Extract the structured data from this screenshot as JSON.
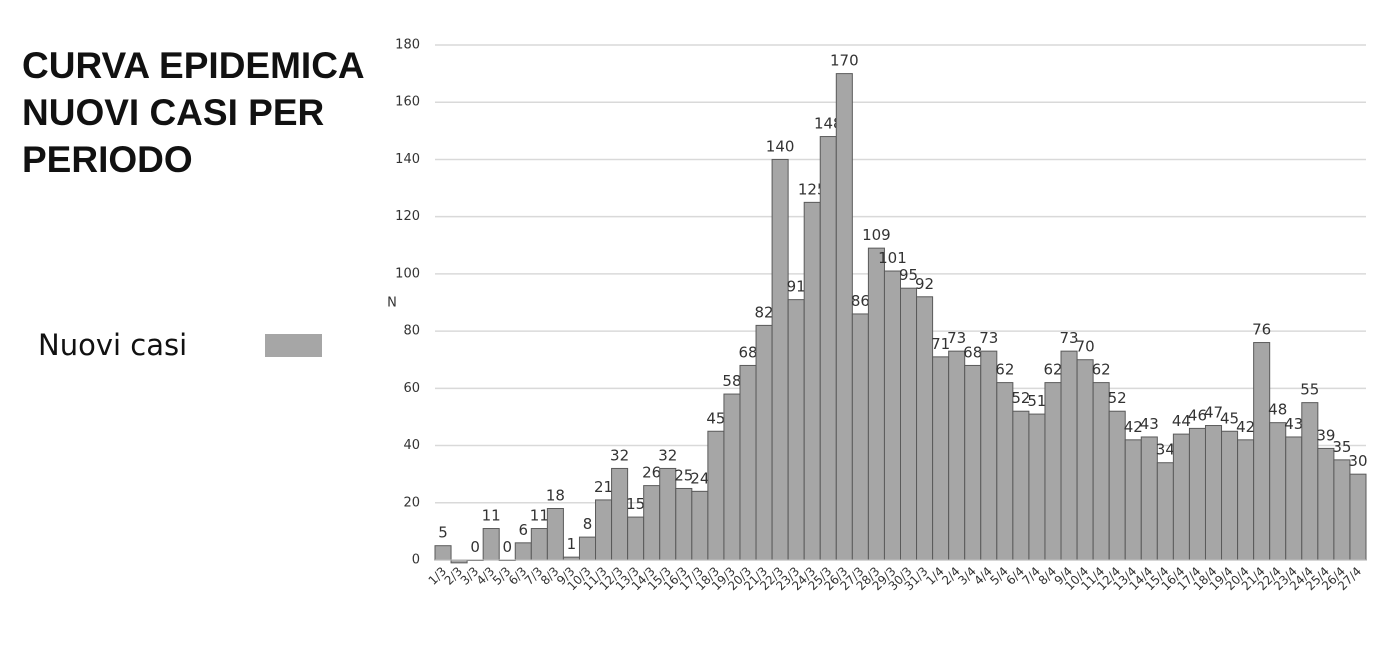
{
  "chart_data": {
    "type": "bar",
    "title": [
      "CURVA EPIDEMICA",
      "NUOVI CASI PER",
      "PERIODO"
    ],
    "y_label": "N",
    "series": [
      {
        "name": "Nuovi casi",
        "color": "#a6a6a6",
        "values": [
          5,
          -1,
          0,
          11,
          0,
          6,
          11,
          18,
          1,
          8,
          21,
          32,
          15,
          26,
          32,
          25,
          24,
          45,
          58,
          68,
          82,
          140,
          91,
          125,
          148,
          170,
          86,
          109,
          101,
          95,
          92,
          71,
          73,
          68,
          73,
          62,
          52,
          51,
          62,
          73,
          70,
          62,
          52,
          42,
          43,
          34,
          44,
          46,
          47,
          45,
          42,
          76,
          48,
          43,
          55,
          39,
          35,
          30
        ],
        "value_labels": [
          "5",
          null,
          "0",
          "11",
          "0",
          "6",
          "11",
          "18",
          "1",
          "8",
          "21",
          "32",
          "15",
          "26",
          "32",
          "25",
          "24",
          "45",
          "58",
          "68",
          "82",
          "140",
          "91",
          "125",
          "148",
          "170",
          "86",
          "109",
          "101",
          "95",
          "92",
          "71",
          "73",
          "68",
          "73",
          "62",
          "52",
          "51",
          "62",
          "73",
          "70",
          "62",
          "52",
          "42",
          "43",
          "34",
          "44",
          "46",
          "47",
          "45",
          "42",
          "76",
          "48",
          "43",
          "55",
          "39",
          "35",
          "30"
        ]
      }
    ],
    "categories": [
      "1/3",
      "2/3",
      "3/3",
      "4/3",
      "5/3",
      "6/3",
      "7/3",
      "8/3",
      "9/3",
      "10/3",
      "11/3",
      "12/3",
      "13/3",
      "14/3",
      "15/3",
      "16/3",
      "17/3",
      "18/3",
      "19/3",
      "20/3",
      "21/3",
      "22/3",
      "23/3",
      "24/3",
      "25/3",
      "26/3",
      "27/3",
      "28/3",
      "29/3",
      "30/3",
      "31/3",
      "1/4",
      "2/4",
      "3/4",
      "4/4",
      "5/4",
      "6/4",
      "7/4",
      "8/4",
      "9/4",
      "10/4",
      "11/4",
      "12/4",
      "13/4",
      "14/4",
      "15/4",
      "16/4",
      "17/4",
      "18/4",
      "19/4",
      "20/4",
      "21/4",
      "22/4",
      "23/4",
      "24/4",
      "25/4",
      "26/4",
      "27/4"
    ],
    "ylim": [
      0,
      180
    ],
    "yticks": [
      0,
      20,
      40,
      60,
      80,
      100,
      120,
      140,
      160,
      180
    ],
    "grid": true
  }
}
